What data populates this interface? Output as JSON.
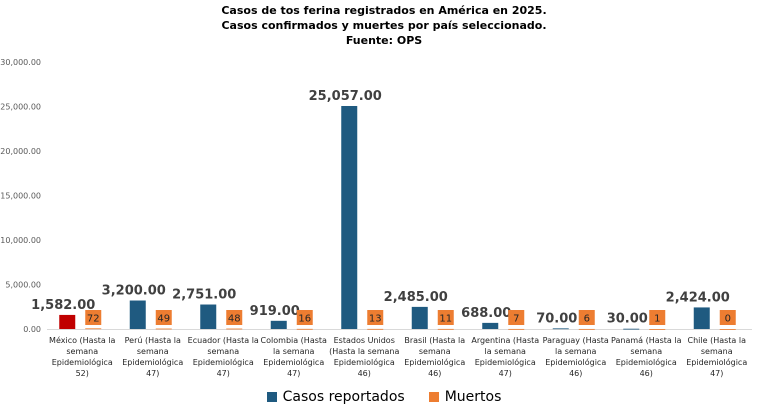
{
  "chart_data": {
    "type": "bar",
    "title": "Casos de tos ferina registrados en América en 2025.",
    "subtitle": "Casos confirmados y muertes por país seleccionado.",
    "source": "Fuente: OPS",
    "xlabel": "",
    "ylabel": "",
    "ylim": [
      0,
      30000
    ],
    "yticks": [
      "0.00",
      "5,000.00",
      "10,000.00",
      "15,000.00",
      "20,000.00",
      "25,000.00",
      "30,000.00"
    ],
    "categories": [
      [
        "México (Hasta la",
        "semana",
        "Epidemiológica",
        "52)"
      ],
      [
        "Perú (Hasta la",
        "semana",
        "Epidemiológica",
        "47)"
      ],
      [
        "Ecuador (Hasta la",
        "semana",
        "Epidemiológica",
        "47)"
      ],
      [
        "Colombia (Hasta",
        "la semana",
        "Epidemiológica",
        "47)"
      ],
      [
        "Estados Unidos",
        "(Hasta la semana",
        "Epidemiológica",
        "46)"
      ],
      [
        "Brasil (Hasta la",
        "semana",
        "Epidemiológica",
        "46)"
      ],
      [
        "Argentina (Hasta",
        "la semana",
        "Epidemiológica",
        "47)"
      ],
      [
        "Paraguay (Hasta",
        "la semana",
        "Epidemiológica",
        "46)"
      ],
      [
        "Panamá (Hasta la",
        "semana",
        "Epidemiológica",
        "46)"
      ],
      [
        "Chile (Hasta la",
        "semana",
        "Epidemiológica",
        "47)"
      ]
    ],
    "series": [
      {
        "name": "Casos reportados",
        "color": "#1f5a80",
        "highlight_color": "#c00000",
        "values": [
          1582,
          3200,
          2751,
          919,
          25057,
          2485,
          688,
          70,
          30,
          2424
        ],
        "labels": [
          "1,582.00",
          "3,200.00",
          "2,751.00",
          "919.00",
          "25,057.00",
          "2,485.00",
          "688.00",
          "70.00",
          "30.00",
          "2,424.00"
        ]
      },
      {
        "name": "Muertos",
        "color": "#ed7d31",
        "values": [
          72,
          49,
          48,
          16,
          13,
          11,
          7,
          6,
          1,
          0
        ],
        "labels": [
          "72",
          "49",
          "48",
          "16",
          "13",
          "11",
          "7",
          "6",
          "1",
          "0"
        ]
      }
    ],
    "legend_position": "bottom"
  }
}
